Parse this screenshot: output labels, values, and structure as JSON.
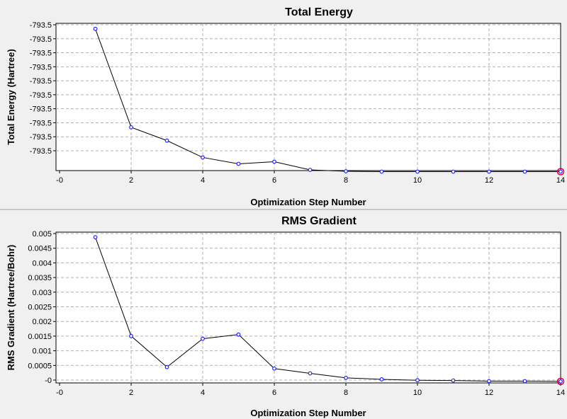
{
  "chart_data": [
    {
      "type": "line",
      "title": "Total Energy",
      "xlabel": "Optimization Step Number",
      "ylabel": "Total Energy (Hartree)",
      "x_ticks": [
        "-0",
        "2",
        "4",
        "6",
        "8",
        "10",
        "12",
        "14"
      ],
      "y_ticks": [
        "-793.5",
        "-793.5",
        "-793.5",
        "-793.5",
        "-793.5",
        "-793.5",
        "-793.5",
        "-793.5",
        "-793.5",
        "-793.5"
      ],
      "xlim": [
        -0.1,
        14
      ],
      "ylim": [
        -793.5068,
        -793.4985
      ],
      "grid": true,
      "x": [
        1,
        2,
        3,
        4,
        5,
        6,
        7,
        8,
        9,
        10,
        11,
        12,
        13,
        14
      ],
      "y": [
        -793.49881,
        -793.50436,
        -793.50511,
        -793.50606,
        -793.50642,
        -793.5063,
        -793.50676,
        -793.50684,
        -793.50686,
        -793.50686,
        -793.50686,
        -793.50686,
        -793.50686,
        -793.50686
      ],
      "highlight_index": 13,
      "colors": {
        "line": "#000000",
        "marker": "#2020ff",
        "highlight": "#e0004a"
      }
    },
    {
      "type": "line",
      "title": "RMS Gradient",
      "xlabel": "Optimization Step Number",
      "ylabel": "RMS Gradient (Hartree/Bohr)",
      "x_ticks": [
        "-0",
        "2",
        "4",
        "6",
        "8",
        "10",
        "12",
        "14"
      ],
      "y_ticks": [
        "-0",
        "0.0005",
        "0.001",
        "0.0015",
        "0.002",
        "0.0025",
        "0.003",
        "0.0035",
        "0.004",
        "0.0045",
        "0.005"
      ],
      "xlim": [
        -0.1,
        14
      ],
      "ylim": [
        -5e-05,
        0.005
      ],
      "grid": true,
      "x": [
        1,
        2,
        3,
        4,
        5,
        6,
        7,
        8,
        9,
        10,
        11,
        12,
        13,
        14
      ],
      "y": [
        0.00483,
        0.00152,
        0.00048,
        0.00143,
        0.00157,
        0.00043,
        0.00027,
        0.00012,
        7e-05,
        4e-05,
        3e-05,
        1e-05,
        1e-05,
        0.0
      ],
      "highlight_index": 13,
      "colors": {
        "line": "#000000",
        "marker": "#2020ff",
        "highlight": "#e0004a"
      }
    }
  ]
}
